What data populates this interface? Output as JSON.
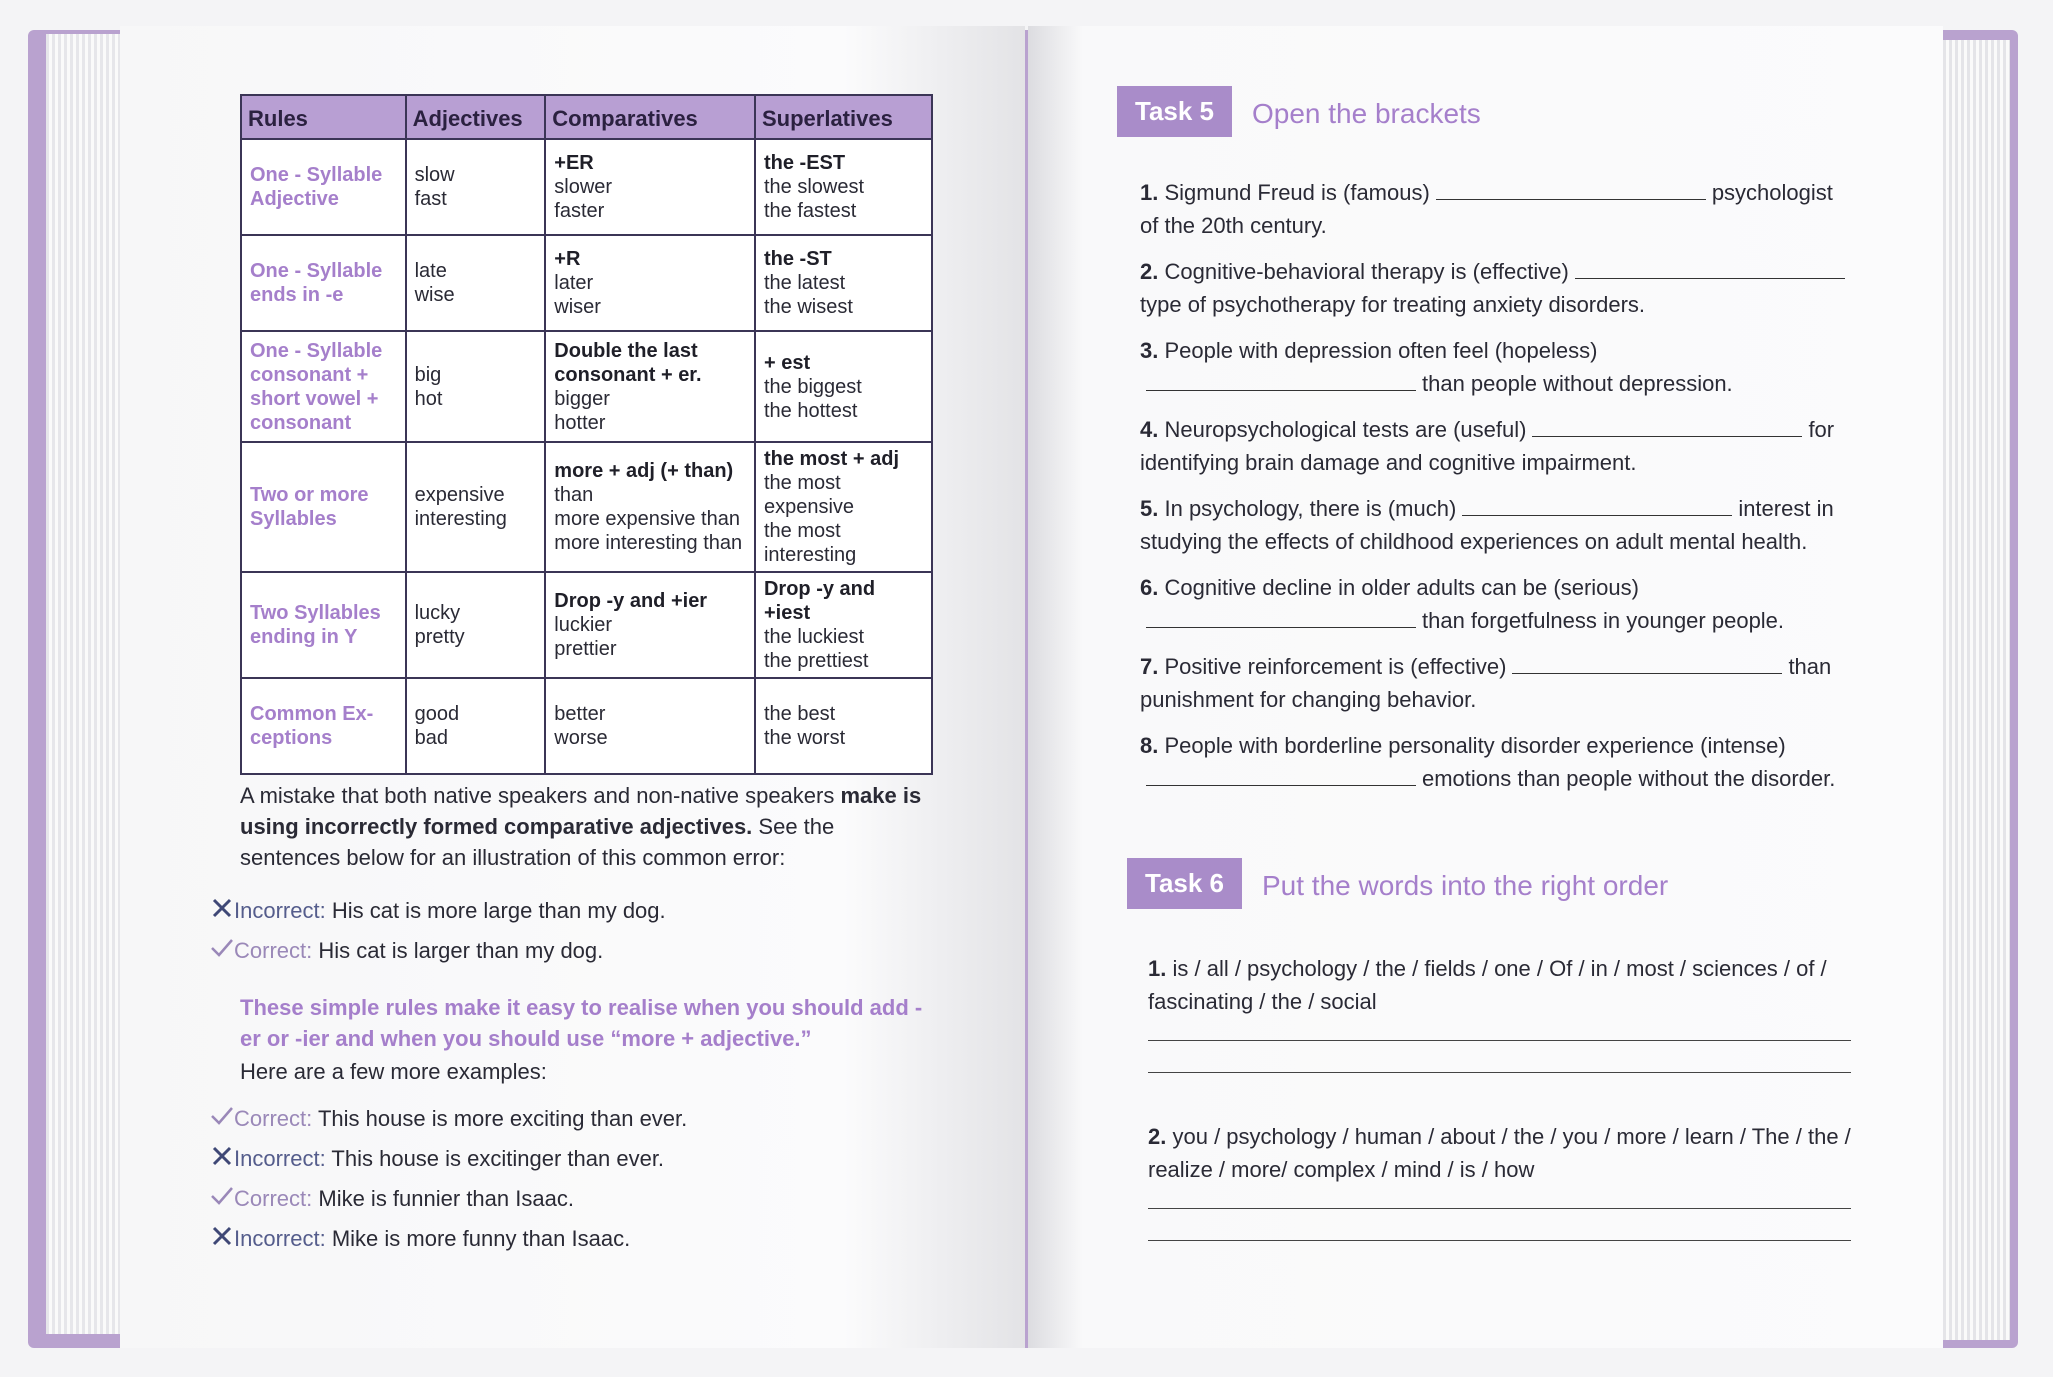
{
  "left_page": {
    "table": {
      "headers": [
        "Rules",
        "Adjectives",
        "Comparatives",
        "Superlatives"
      ],
      "rows": [
        [
          {
            "head": [],
            "body": [
              "One - Syllable",
              "Adjective"
            ]
          },
          {
            "head": [],
            "body": [
              "slow",
              "fast"
            ]
          },
          {
            "head": [
              "+ER"
            ],
            "body": [
              "slower",
              "faster"
            ]
          },
          {
            "head": [
              "the -EST"
            ],
            "body": [
              "the slowest",
              "the fastest"
            ]
          }
        ],
        [
          {
            "head": [],
            "body": [
              "One - Syllable",
              "ends in -e"
            ]
          },
          {
            "head": [],
            "body": [
              "late",
              "wise"
            ]
          },
          {
            "head": [
              "+R"
            ],
            "body": [
              "later",
              "wiser"
            ]
          },
          {
            "head": [
              "the -ST"
            ],
            "body": [
              "the latest",
              "the wisest"
            ]
          }
        ],
        [
          {
            "head": [],
            "body": [
              "One - Syllable",
              "consonant +",
              "short vowel +",
              "consonant"
            ]
          },
          {
            "head": [],
            "body": [
              "big",
              "hot"
            ]
          },
          {
            "head": [
              "Double the last",
              "consonant + er."
            ],
            "body": [
              "bigger",
              "hotter"
            ]
          },
          {
            "head": [
              "+ est"
            ],
            "body": [
              "the biggest",
              "the hottest"
            ]
          }
        ],
        [
          {
            "head": [],
            "body": [
              "Two or more",
              "Syllables"
            ]
          },
          {
            "head": [],
            "body": [
              "expensive",
              "interesting"
            ]
          },
          {
            "head": [
              "more + adj (+ than)"
            ],
            "body": [
              "than",
              "more expensive than",
              "more interesting than"
            ]
          },
          {
            "head": [
              "the most + adj"
            ],
            "body": [
              "the most expensive",
              "the most interesting"
            ]
          }
        ],
        [
          {
            "head": [],
            "body": [
              "Two Syllables",
              "ending in Y"
            ]
          },
          {
            "head": [],
            "body": [
              "lucky",
              "pretty"
            ]
          },
          {
            "head": [
              "Drop -y and +ier"
            ],
            "body": [
              "luckier",
              "prettier"
            ]
          },
          {
            "head": [
              "Drop -y and +iest"
            ],
            "body": [
              "the luckiest",
              "the prettiest"
            ]
          }
        ],
        [
          {
            "head": [],
            "body": [
              "Common Ex-",
              "ceptions"
            ]
          },
          {
            "head": [],
            "body": [
              "good",
              "bad"
            ]
          },
          {
            "head": [],
            "body": [
              "better",
              "worse"
            ]
          },
          {
            "head": [],
            "body": [
              "the best",
              "the worst"
            ]
          }
        ]
      ]
    },
    "intro": {
      "start": "A mistake that both native speakers and non-native speakers",
      "bold": "make is using incorrectly formed comparative adjectives.",
      "end": "See the sentences below for an illustration of this common error:"
    },
    "examples_1": [
      {
        "label": "Incorrect:",
        "text": "His cat is more large than my dog."
      },
      {
        "label": "Correct:",
        "text": "His cat is larger than my dog."
      }
    ],
    "note": "These simple rules make it easy to realise when you should add -er or -ier and when you should use “more + adjective.”",
    "note_follow": "Here are a few more examples:",
    "examples_2": [
      {
        "label": "Correct:",
        "text": "This house is more exciting than ever."
      },
      {
        "label": "Incorrect:",
        "text": "This house is excitinger than ever."
      },
      {
        "label": "Correct:",
        "text": "Mike is funnier than Isaac."
      },
      {
        "label": "Incorrect:",
        "text": "Mike is more funny than Isaac."
      }
    ]
  },
  "right_page": {
    "task5": {
      "label": "Task 5",
      "title": "Open the brackets",
      "items": [
        {
          "num": "1.",
          "before": "Sigmund Freud is (famous)",
          "after": "psychologist of the 20th century."
        },
        {
          "num": "2.",
          "before": "Cognitive-behavioral therapy is (effective)",
          "after": "type of psychotherapy for treating anxiety disorders."
        },
        {
          "num": "3.",
          "before": "People with depression often feel (hopeless)",
          "after": "than people without depression."
        },
        {
          "num": "4.",
          "before": "Neuropsychological tests are (useful)",
          "after": "for identifying brain damage and cognitive impairment."
        },
        {
          "num": "5.",
          "before": "In psychology, there is (much)",
          "after": "interest in studying the effects of childhood experiences on adult mental health."
        },
        {
          "num": "6.",
          "before": "Cognitive decline in older adults can be (serious)",
          "after": "than forgetfulness in younger people."
        },
        {
          "num": "7.",
          "before": "Positive reinforcement is (effective)",
          "after": "than punishment for changing behavior."
        },
        {
          "num": "8.",
          "before": "People with borderline personality disorder experience (intense)",
          "after": "emotions than people without the disorder."
        }
      ]
    },
    "task6": {
      "label": "Task 6",
      "title": "Put the words into the right order",
      "items": [
        {
          "num": "1.",
          "text": "is / all / psychology / the / fields / one / Of / in / most / sciences / of / fascinating / the / social"
        },
        {
          "num": "2.",
          "text": "you / psychology / human / about / the / you / more / learn / The / the / realize / more/ complex / mind / is / how"
        }
      ]
    }
  }
}
